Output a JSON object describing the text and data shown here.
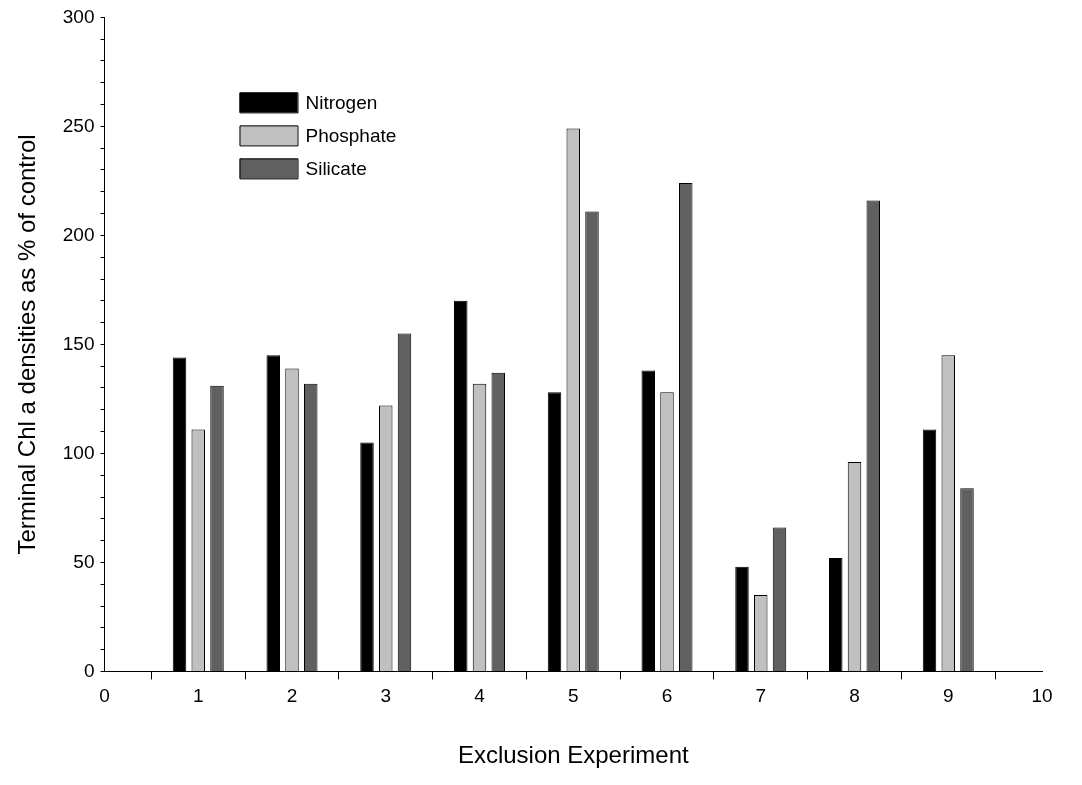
{
  "chart_data": {
    "type": "bar",
    "xlabel": "Exclusion Experiment",
    "ylabel": "Terminal Chl a densities as % of control",
    "x": [
      1,
      2,
      3,
      4,
      5,
      6,
      7,
      8,
      9
    ],
    "series": [
      {
        "name": "Nitrogen",
        "color": "#000000",
        "values": [
          144,
          145,
          105,
          170,
          128,
          138,
          48,
          52,
          111
        ]
      },
      {
        "name": "Phosphate",
        "color": "#c0c0c0",
        "values": [
          111,
          139,
          122,
          132,
          249,
          128,
          35,
          96,
          145
        ]
      },
      {
        "name": "Silicate",
        "color": "#606060",
        "values": [
          131,
          132,
          155,
          137,
          211,
          224,
          66,
          216,
          84
        ]
      }
    ],
    "xlim": [
      0,
      10
    ],
    "xticks": [
      0,
      1,
      2,
      3,
      4,
      5,
      6,
      7,
      8,
      9,
      10
    ],
    "ylim": [
      0,
      300
    ],
    "yticks": [
      0,
      {
        "value": 10,
        "label": null
      },
      {
        "value": 20,
        "label": null
      },
      {
        "value": 30,
        "label": null
      },
      {
        "value": 40,
        "label": null
      },
      50,
      {
        "value": 60,
        "label": null
      },
      {
        "value": 70,
        "label": null
      },
      {
        "value": 80,
        "label": null
      },
      {
        "value": 90,
        "label": null
      },
      100,
      {
        "value": 110,
        "label": null
      },
      {
        "value": 120,
        "label": null
      },
      {
        "value": 130,
        "label": null
      },
      {
        "value": 140,
        "label": null
      },
      150,
      {
        "value": 160,
        "label": null
      },
      {
        "value": 170,
        "label": null
      },
      {
        "value": 180,
        "label": null
      },
      {
        "value": 190,
        "label": null
      },
      200,
      {
        "value": 210,
        "label": null
      },
      {
        "value": 220,
        "label": null
      },
      {
        "value": 230,
        "label": null
      },
      {
        "value": 240,
        "label": null
      },
      250,
      {
        "value": 260,
        "label": null
      },
      {
        "value": 270,
        "label": null
      },
      {
        "value": 280,
        "label": null
      },
      {
        "value": 290,
        "label": null
      },
      300
    ],
    "legend": "top left",
    "grid": false
  }
}
